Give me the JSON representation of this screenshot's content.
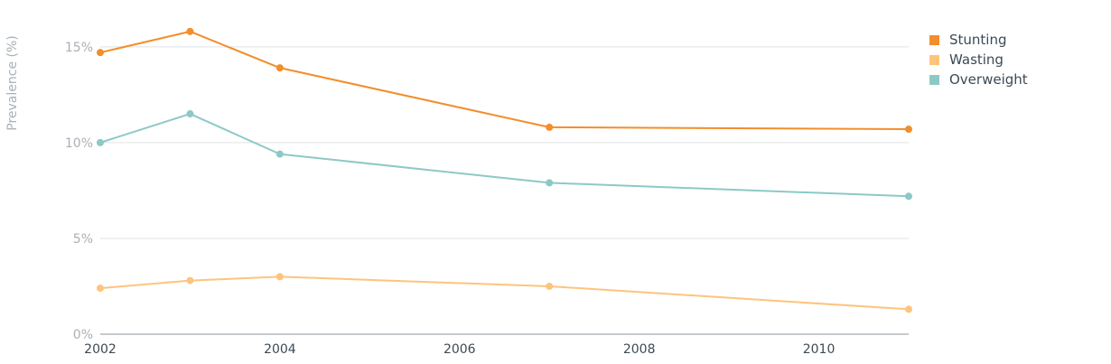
{
  "chart_data": {
    "type": "line",
    "ylabel": "Prevalence (%)",
    "xlim": [
      2002,
      2011
    ],
    "ylim": [
      0,
      16.5
    ],
    "x_ticks": [
      2002,
      2004,
      2006,
      2008,
      2010
    ],
    "y_ticks": [
      {
        "value": 0,
        "label": "0%"
      },
      {
        "value": 5,
        "label": "5%"
      },
      {
        "value": 10,
        "label": "10%"
      },
      {
        "value": 15,
        "label": "15%"
      }
    ],
    "x": [
      2002,
      2003,
      2004,
      2007,
      2011
    ],
    "grid": true,
    "legend_position": "top-right",
    "series": [
      {
        "name": "Stunting",
        "color": "#f28e2b",
        "values": [
          14.7,
          15.8,
          13.9,
          10.8,
          10.7
        ]
      },
      {
        "name": "Wasting",
        "color": "#fdc47d",
        "values": [
          2.4,
          2.8,
          3.0,
          2.5,
          1.3
        ]
      },
      {
        "name": "Overweight",
        "color": "#8cc9c6",
        "values": [
          10.0,
          11.5,
          9.4,
          7.9,
          7.2
        ]
      }
    ]
  }
}
